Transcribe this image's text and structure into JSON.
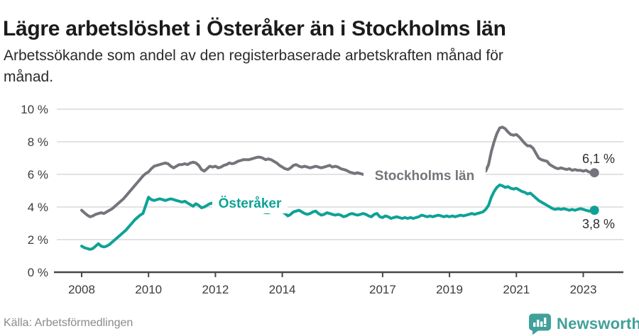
{
  "header": {
    "title": "Lägre arbetslöshet i Österåker än i Stockholms län",
    "subtitle_lines": [
      "Arbetssökande som andel av den registerbaserade arbetskraften månad för",
      "månad."
    ]
  },
  "footer": {
    "source": "Källa: Arbetsförmedlingen",
    "brand": "Newsworthy",
    "logo_icon": "bar-chart-speech-bubble-icon",
    "brand_color": "#41a09a"
  },
  "chart_data": {
    "type": "line",
    "grid": true,
    "x_start_year": 2008,
    "x_start_month": 1,
    "frequency": "monthly",
    "x_ticks": [
      {
        "value": 2008,
        "label": "2008"
      },
      {
        "value": 2010,
        "label": "2010"
      },
      {
        "value": 2012,
        "label": "2012"
      },
      {
        "value": 2014,
        "label": "2014"
      },
      {
        "value": 2017,
        "label": "2017"
      },
      {
        "value": 2019,
        "label": "2019"
      },
      {
        "value": 2021,
        "label": "2021"
      },
      {
        "value": 2023,
        "label": "2023"
      }
    ],
    "y_ticks": [
      {
        "value": 0,
        "label": "0 %"
      },
      {
        "value": 2,
        "label": "2 %"
      },
      {
        "value": 4,
        "label": "4 %"
      },
      {
        "value": 6,
        "label": "6 %"
      },
      {
        "value": 8,
        "label": "8 %"
      },
      {
        "value": 10,
        "label": "10 %"
      }
    ],
    "ylim": [
      0,
      10
    ],
    "series": [
      {
        "id": "stockholms-lan",
        "name": "Stockholms län",
        "color": "#75747b",
        "end_label": "6,1 %",
        "values": [
          3.8,
          3.65,
          3.5,
          3.4,
          3.45,
          3.55,
          3.6,
          3.65,
          3.6,
          3.7,
          3.8,
          3.9,
          4.05,
          4.2,
          4.35,
          4.5,
          4.7,
          4.9,
          5.1,
          5.3,
          5.5,
          5.7,
          5.9,
          6.05,
          6.15,
          6.35,
          6.5,
          6.55,
          6.6,
          6.65,
          6.7,
          6.65,
          6.5,
          6.4,
          6.5,
          6.6,
          6.6,
          6.65,
          6.6,
          6.7,
          6.75,
          6.7,
          6.55,
          6.3,
          6.2,
          6.35,
          6.5,
          6.45,
          6.5,
          6.4,
          6.45,
          6.55,
          6.6,
          6.7,
          6.65,
          6.7,
          6.8,
          6.85,
          6.9,
          6.9,
          6.9,
          6.95,
          7.0,
          7.05,
          7.05,
          7.0,
          6.9,
          6.95,
          6.9,
          6.8,
          6.7,
          6.55,
          6.45,
          6.35,
          6.3,
          6.4,
          6.55,
          6.6,
          6.5,
          6.45,
          6.5,
          6.45,
          6.4,
          6.45,
          6.5,
          6.45,
          6.4,
          6.45,
          6.5,
          6.55,
          6.45,
          6.5,
          6.45,
          6.35,
          6.3,
          6.25,
          6.15,
          6.1,
          6.05,
          6.1,
          6.05,
          6.0,
          5.95,
          5.9,
          5.9,
          5.85,
          5.9,
          5.9,
          5.9,
          5.95,
          5.9,
          5.85,
          5.9,
          5.85,
          5.9,
          5.95,
          6.0,
          5.95,
          6.0,
          6.0,
          6.0,
          5.95,
          5.9,
          5.85,
          5.8,
          5.85,
          5.8,
          5.85,
          5.9,
          5.85,
          5.9,
          5.95,
          5.95,
          6.0,
          5.95,
          6.0,
          6.0,
          6.05,
          6.0,
          6.05,
          6.1,
          6.05,
          6.0,
          6.05,
          6.1,
          6.2,
          6.6,
          7.4,
          8.0,
          8.5,
          8.85,
          8.9,
          8.8,
          8.6,
          8.45,
          8.4,
          8.45,
          8.3,
          8.1,
          7.9,
          7.75,
          7.75,
          7.6,
          7.3,
          7.0,
          6.9,
          6.85,
          6.8,
          6.6,
          6.5,
          6.4,
          6.35,
          6.4,
          6.35,
          6.3,
          6.35,
          6.25,
          6.3,
          6.25,
          6.25,
          6.2,
          6.25,
          6.15,
          6.1,
          6.1
        ]
      },
      {
        "id": "osteraker",
        "name": "Österåker",
        "color": "#0ea296",
        "end_label": "3,8 %",
        "values": [
          1.6,
          1.5,
          1.45,
          1.4,
          1.45,
          1.6,
          1.75,
          1.6,
          1.55,
          1.6,
          1.7,
          1.85,
          2.0,
          2.15,
          2.3,
          2.45,
          2.6,
          2.8,
          3.0,
          3.2,
          3.35,
          3.5,
          3.6,
          4.1,
          4.6,
          4.45,
          4.4,
          4.45,
          4.5,
          4.45,
          4.4,
          4.45,
          4.5,
          4.45,
          4.4,
          4.35,
          4.3,
          4.35,
          4.25,
          4.15,
          4.05,
          4.2,
          4.1,
          3.95,
          4.0,
          4.1,
          4.2,
          4.25,
          4.3,
          4.25,
          4.2,
          4.15,
          4.1,
          4.05,
          4.0,
          3.95,
          3.95,
          3.9,
          3.85,
          3.85,
          3.8,
          3.8,
          3.75,
          3.75,
          3.7,
          3.7,
          3.65,
          3.65,
          3.7,
          3.7,
          3.75,
          3.7,
          3.7,
          3.6,
          3.45,
          3.55,
          3.7,
          3.75,
          3.8,
          3.7,
          3.6,
          3.55,
          3.6,
          3.7,
          3.75,
          3.6,
          3.5,
          3.55,
          3.65,
          3.6,
          3.55,
          3.5,
          3.55,
          3.5,
          3.4,
          3.45,
          3.55,
          3.6,
          3.55,
          3.5,
          3.55,
          3.6,
          3.55,
          3.45,
          3.4,
          3.55,
          3.6,
          3.4,
          3.35,
          3.45,
          3.4,
          3.3,
          3.35,
          3.4,
          3.35,
          3.3,
          3.35,
          3.3,
          3.35,
          3.3,
          3.35,
          3.4,
          3.5,
          3.45,
          3.4,
          3.45,
          3.4,
          3.45,
          3.5,
          3.45,
          3.4,
          3.45,
          3.4,
          3.45,
          3.4,
          3.45,
          3.5,
          3.45,
          3.5,
          3.55,
          3.6,
          3.55,
          3.6,
          3.65,
          3.7,
          3.85,
          4.1,
          4.6,
          4.95,
          5.2,
          5.35,
          5.3,
          5.2,
          5.25,
          5.15,
          5.1,
          5.15,
          5.05,
          4.95,
          4.9,
          4.8,
          4.85,
          4.7,
          4.55,
          4.4,
          4.3,
          4.2,
          4.1,
          4.0,
          3.9,
          3.85,
          3.9,
          3.85,
          3.9,
          3.85,
          3.8,
          3.85,
          3.8,
          3.85,
          3.9,
          3.85,
          3.8,
          3.75,
          3.75,
          3.8
        ]
      }
    ],
    "colors": {
      "gridline": "#e2e2e4",
      "axis": "#47474c",
      "tick_label": "#3c3c40",
      "end_value_label": "#2e2e33"
    }
  }
}
